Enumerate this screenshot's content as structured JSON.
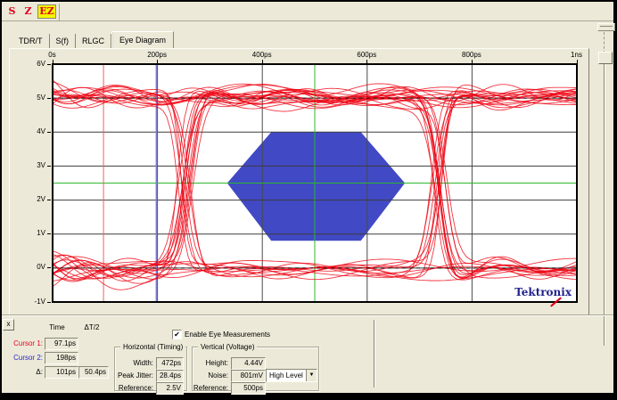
{
  "colors": {
    "window_bg": "#ece9d8",
    "trace_red": "#ee0211",
    "mask_blue": "#4149c4",
    "reference_green": "#2eb82e",
    "cursor1_red": "#f26060",
    "cursor2_blue": "#7d7dd4",
    "logo_navy": "#23238e",
    "ez_highlight_yellow": "#f5f500",
    "grid_gray": "#454545"
  },
  "toolbar": {
    "buttons": [
      {
        "label": "S"
      },
      {
        "label": "Z"
      },
      {
        "label": "EZ",
        "active": true
      }
    ]
  },
  "tabs": {
    "items": [
      {
        "label": "TDR/T",
        "active": false
      },
      {
        "label": "S(f)",
        "active": false
      },
      {
        "label": "RLGC",
        "active": false
      },
      {
        "label": "Eye Diagram",
        "active": true
      }
    ]
  },
  "plot": {
    "logo": "Tektronix"
  },
  "chart_data": {
    "type": "line",
    "title": "Eye Diagram",
    "x_axis": {
      "ticks": [
        "0s",
        "200ps",
        "400ps",
        "600ps",
        "800ps",
        "1ns"
      ],
      "range_ps": [
        0,
        1000
      ],
      "position": "top"
    },
    "y_axis": {
      "ticks": [
        "6V",
        "5V",
        "4V",
        "3V",
        "2V",
        "1V",
        "0V",
        "-1V"
      ],
      "range_V": [
        -1,
        6
      ]
    },
    "grid": true,
    "trace_color": "#ee0211",
    "trace_description": "Red eye-diagram waveform bundle; high rail ~5V, low rail ~0V, crossings near 250ps and 740ps",
    "rails_V": {
      "high": 5.05,
      "low": -0.05
    },
    "crossings_ps": [
      252,
      736
    ],
    "mask": {
      "color": "#4149c4",
      "vertices_ps_V": [
        [
          333,
          2.5
        ],
        [
          417,
          4.0
        ],
        [
          588,
          4.0
        ],
        [
          672,
          2.5
        ],
        [
          588,
          0.8
        ],
        [
          417,
          0.8
        ]
      ]
    },
    "reference_lines": {
      "horizontal_V": 2.5,
      "vertical_ps": 500,
      "color": "#2eb82e"
    },
    "level_lines_V": [
      5.0,
      0.0
    ],
    "cursors": [
      {
        "name": "Cursor 1",
        "position_ps": 97.1,
        "color": "#f26060"
      },
      {
        "name": "Cursor 2",
        "position_ps": 198,
        "color": "#7d7dd4"
      }
    ],
    "measurements": {
      "eye_width_ps": 472,
      "peak_jitter_ps": 28.4,
      "eye_height_V": 4.44,
      "noise_mV": 801
    }
  },
  "bottom": {
    "close_label": "x",
    "cursor_table": {
      "headers": {
        "time": "Time",
        "dt2": "ΔT/2"
      },
      "rows": [
        {
          "label": "Cursor 1:",
          "value": "97.1ps"
        },
        {
          "label": "Cursor 2:",
          "value": "198ps"
        },
        {
          "label": "Δ:",
          "value": "101ps",
          "value2": "50.4ps"
        }
      ]
    },
    "enable_checkbox": {
      "label": "Enable Eye Measurements",
      "checked": true,
      "check_glyph": "✔"
    },
    "horizontal_group": {
      "title": "Horizontal (Timing)",
      "fields": [
        {
          "label": "Width:",
          "value": "472ps"
        },
        {
          "label": "Peak Jitter:",
          "value": "28.4ps"
        },
        {
          "label": "Reference:",
          "value": "2.5V"
        }
      ]
    },
    "vertical_group": {
      "title": "Vertical (Voltage)",
      "fields": [
        {
          "label": "Height:",
          "value": "4.44V"
        },
        {
          "label": "Noise:",
          "value": "801mV"
        },
        {
          "label": "Reference:",
          "value": "500ps"
        }
      ],
      "noise_dropdown": {
        "value": "High Level",
        "arrow_glyph": "▼"
      }
    }
  }
}
